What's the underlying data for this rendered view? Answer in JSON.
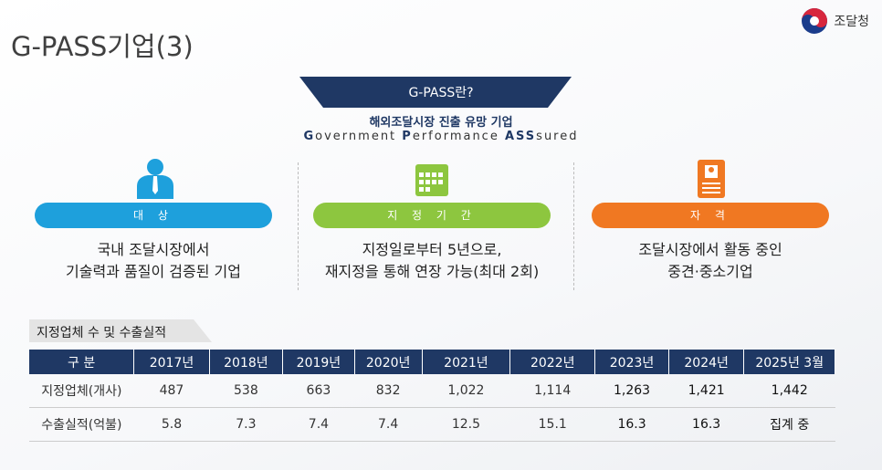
{
  "header": {
    "title": "G-PASS기업(3)",
    "logo_text": "조달청"
  },
  "intro": {
    "banner": "G-PASS란?",
    "subtitle": "해외조달시장 진출 유망 기업",
    "english": [
      {
        "text": "G",
        "bold": true
      },
      {
        "text": "overnment ",
        "bold": false
      },
      {
        "text": "P",
        "bold": true
      },
      {
        "text": "erformance ",
        "bold": false
      },
      {
        "text": "ASS",
        "bold": true
      },
      {
        "text": "sured",
        "bold": false
      }
    ]
  },
  "columns": [
    {
      "label": "대 상",
      "color": "#1ea0dc",
      "lines": [
        "국내 조달시장에서",
        "기술력과 품질이 검증된 기업"
      ]
    },
    {
      "label": "지 정 기 간",
      "color": "#8dc63f",
      "lines": [
        "지정일로부터 5년으로,",
        "재지정을 통해 연장 가능(최대 2회)"
      ]
    },
    {
      "label": "자 격",
      "color": "#f07822",
      "lines": [
        "조달시장에서 활동 중인",
        "중견·중소기업"
      ]
    }
  ],
  "table": {
    "caption": "지정업체 수 및 수출실적",
    "header": [
      "구 분",
      "2017년",
      "2018년",
      "2019년",
      "2020년",
      "2021년",
      "2022년",
      "2023년",
      "2024년",
      "2025년 3월"
    ],
    "rows": [
      [
        "지정업체(개사)",
        "487",
        "538",
        "663",
        "832",
        "1,022",
        "1,114",
        "1,263",
        "1,421",
        "1,442"
      ],
      [
        "수출실적(억불)",
        "5.8",
        "7.3",
        "7.4",
        "7.4",
        "12.5",
        "15.1",
        "16.3",
        "16.3",
        "집계 중"
      ]
    ]
  }
}
